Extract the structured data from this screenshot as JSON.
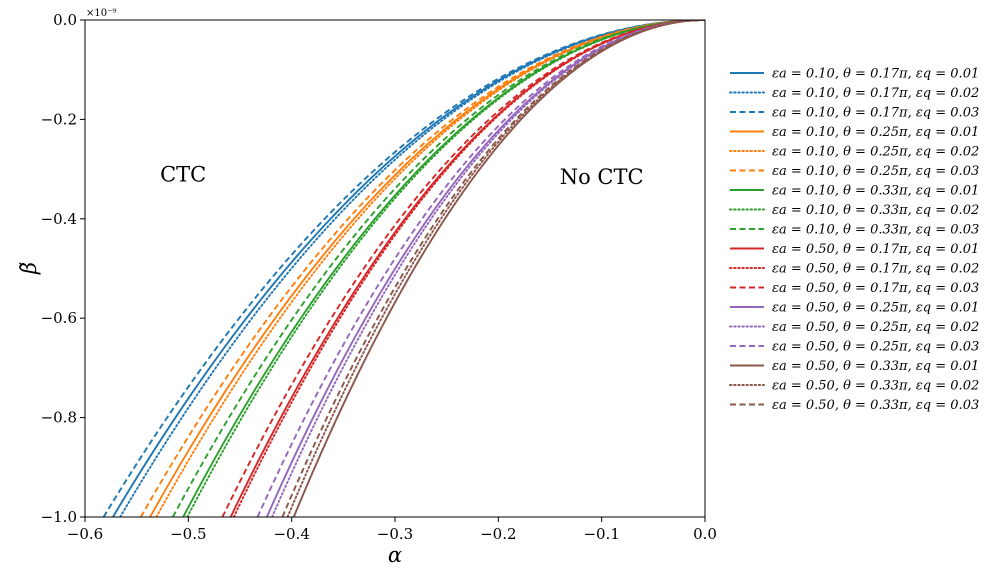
{
  "chart_data": {
    "type": "line",
    "xlabel": "α",
    "ylabel": "β̃",
    "xlim": [
      -0.6,
      0.0
    ],
    "ylim": [
      -1.0,
      0.0
    ],
    "y_scale_label": "×10⁻⁹",
    "x_ticks": [
      -0.6,
      -0.5,
      -0.4,
      -0.3,
      -0.2,
      -0.1,
      0.0
    ],
    "x_tick_labels": [
      "−0.6",
      "−0.5",
      "−0.4",
      "−0.3",
      "−0.2",
      "−0.1",
      "0.0"
    ],
    "y_ticks": [
      0.0,
      -0.2,
      -0.4,
      -0.6,
      -0.8,
      -1.0
    ],
    "y_tick_labels": [
      "0.0",
      "−0.2",
      "−0.4",
      "−0.6",
      "−0.8",
      "−1.0"
    ],
    "annotations": [
      {
        "text": "CTC",
        "x": -0.505,
        "y": -0.325
      },
      {
        "text": "No CTC",
        "x": -0.1,
        "y": -0.33
      }
    ],
    "legend_position": "right outside",
    "series": [
      {
        "name": "εa = 0.10,  θ = 0.17π,  εq = 0.01",
        "color": "#1f77b4",
        "style": "solid",
        "alpha_at_beta_minus1": -0.573
      },
      {
        "name": "εa = 0.10,  θ = 0.17π,  εq = 0.02",
        "color": "#1f77b4",
        "style": "dotted",
        "alpha_at_beta_minus1": -0.566
      },
      {
        "name": "εa = 0.10,  θ = 0.17π,  εq = 0.03",
        "color": "#1f77b4",
        "style": "dashed",
        "alpha_at_beta_minus1": -0.582
      },
      {
        "name": "εa = 0.10,  θ = 0.25π,  εq = 0.01",
        "color": "#ff7f0e",
        "style": "solid",
        "alpha_at_beta_minus1": -0.537
      },
      {
        "name": "εa = 0.10,  θ = 0.25π,  εq = 0.02",
        "color": "#ff7f0e",
        "style": "dotted",
        "alpha_at_beta_minus1": -0.531
      },
      {
        "name": "εa = 0.10,  θ = 0.25π,  εq = 0.03",
        "color": "#ff7f0e",
        "style": "dashed",
        "alpha_at_beta_minus1": -0.546
      },
      {
        "name": "εa = 0.10,  θ = 0.33π,  εq = 0.01",
        "color": "#2ca02c",
        "style": "solid",
        "alpha_at_beta_minus1": -0.505
      },
      {
        "name": "εa = 0.10,  θ = 0.33π,  εq = 0.02",
        "color": "#2ca02c",
        "style": "dotted",
        "alpha_at_beta_minus1": -0.501
      },
      {
        "name": "εa = 0.10,  θ = 0.33π,  εq = 0.03",
        "color": "#2ca02c",
        "style": "dashed",
        "alpha_at_beta_minus1": -0.515
      },
      {
        "name": "εa = 0.50,  θ = 0.17π,  εq = 0.01",
        "color": "#d62728",
        "style": "solid",
        "alpha_at_beta_minus1": -0.459
      },
      {
        "name": "εa = 0.50,  θ = 0.17π,  εq = 0.02",
        "color": "#d62728",
        "style": "dotted",
        "alpha_at_beta_minus1": -0.456
      },
      {
        "name": "εa = 0.50,  θ = 0.17π,  εq = 0.03",
        "color": "#d62728",
        "style": "dashed",
        "alpha_at_beta_minus1": -0.467
      },
      {
        "name": "εa = 0.50,  θ = 0.25π,  εq = 0.01",
        "color": "#9467bd",
        "style": "solid",
        "alpha_at_beta_minus1": -0.424
      },
      {
        "name": "εa = 0.50,  θ = 0.25π,  εq = 0.02",
        "color": "#9467bd",
        "style": "dotted",
        "alpha_at_beta_minus1": -0.419
      },
      {
        "name": "εa = 0.50,  θ = 0.25π,  εq = 0.03",
        "color": "#9467bd",
        "style": "dashed",
        "alpha_at_beta_minus1": -0.433
      },
      {
        "name": "εa = 0.50,  θ = 0.33π,  εq = 0.01",
        "color": "#8c564b",
        "style": "solid",
        "alpha_at_beta_minus1": -0.398
      },
      {
        "name": "εa = 0.50,  θ = 0.33π,  εq = 0.02",
        "color": "#8c564b",
        "style": "dotted",
        "alpha_at_beta_minus1": -0.404
      },
      {
        "name": "εa = 0.50,  θ = 0.33π,  εq = 0.03",
        "color": "#8c564b",
        "style": "dashed",
        "alpha_at_beta_minus1": -0.409
      }
    ]
  }
}
